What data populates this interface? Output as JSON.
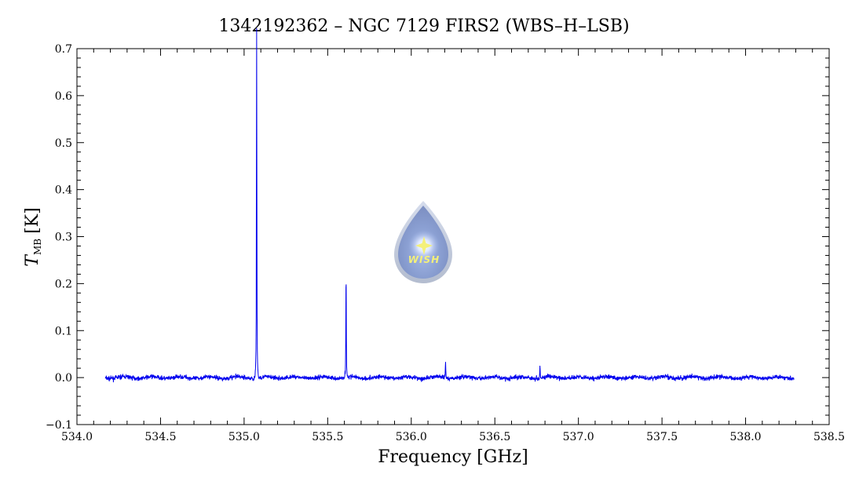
{
  "chart_data": {
    "type": "line",
    "title": "1342192362 – NGC 7129 FIRS2 (WBS–H–LSB)",
    "xlabel": "Frequency [GHz]",
    "ylabel": {
      "symbol": "T",
      "subscript": "MB",
      "unit": "[K]"
    },
    "xlim": [
      534.0,
      538.5
    ],
    "ylim": [
      -0.1,
      0.7
    ],
    "xticks": [
      "534.0",
      "534.5",
      "535.0",
      "535.5",
      "536.0",
      "536.5",
      "537.0",
      "537.5",
      "538.0",
      "538.5"
    ],
    "yticks": [
      "−0.1",
      "0.0",
      "0.1",
      "0.2",
      "0.3",
      "0.4",
      "0.5",
      "0.6",
      "0.7"
    ],
    "grid": false,
    "series": [
      {
        "color": "#0000ee",
        "x_range": [
          534.17,
          538.29
        ],
        "baseline": 0.0,
        "noise_rms": 0.004,
        "lines": [
          {
            "x": 535.075,
            "peak": 0.65
          },
          {
            "x": 535.61,
            "peak": 0.195
          },
          {
            "x": 536.205,
            "peak": 0.03
          },
          {
            "x": 536.77,
            "peak": 0.025
          }
        ]
      }
    ]
  },
  "logo": {
    "text": "WISH"
  }
}
